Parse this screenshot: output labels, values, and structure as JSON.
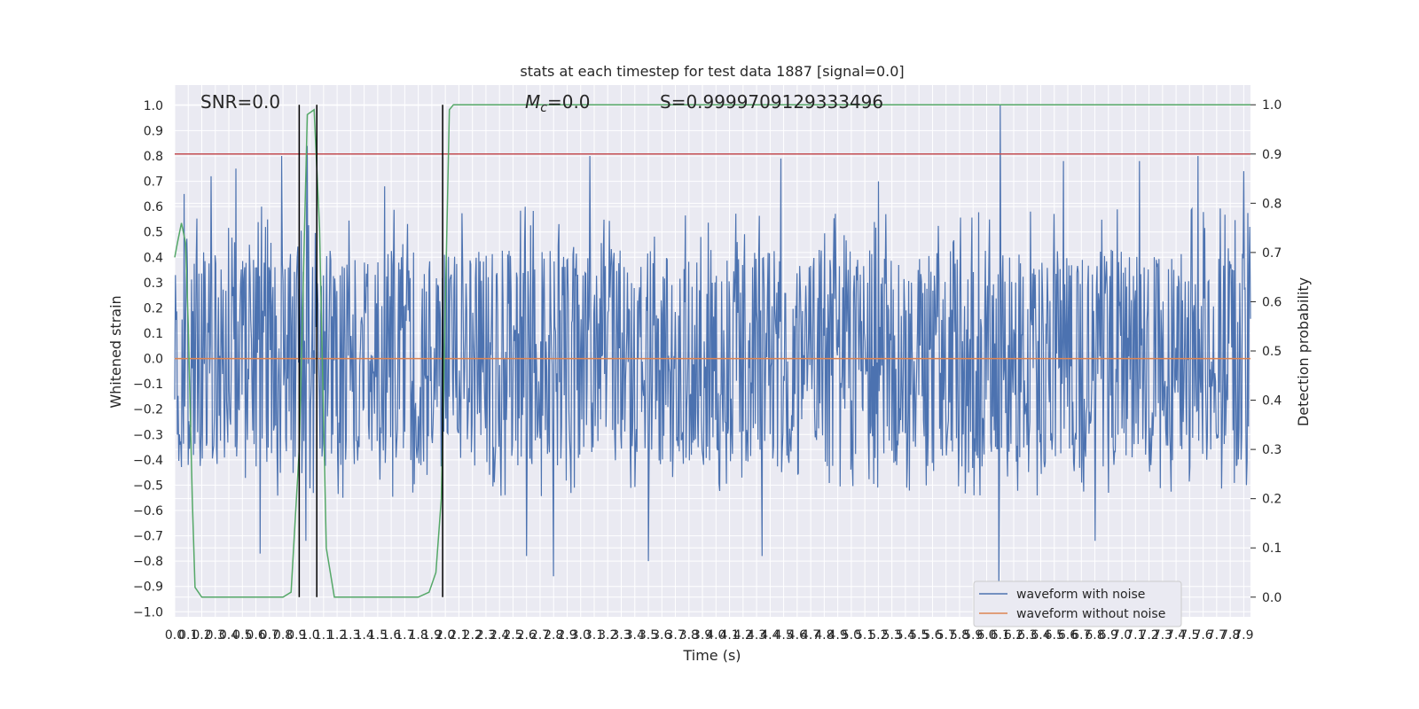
{
  "chart_data": {
    "type": "line",
    "title": "stats at each timestep for test data 1887 [signal=0.0]",
    "xlabel": "Time (s)",
    "ylabel": "Whitened strain",
    "y2label": "Detection probability",
    "xlim": [
      0.0,
      7.95
    ],
    "ylim": [
      -1.02,
      1.08
    ],
    "y2lim": [
      -0.04,
      1.04
    ],
    "x_ticks": [
      0.0,
      0.1,
      0.2,
      0.3,
      0.4,
      0.5,
      0.6,
      0.7,
      0.8,
      0.9,
      1.0,
      1.1,
      1.2,
      1.3,
      1.4,
      1.5,
      1.6,
      1.7,
      1.8,
      1.9,
      2.0,
      2.1,
      2.2,
      2.3,
      2.4,
      2.5,
      2.6,
      2.7,
      2.8,
      2.9,
      3.0,
      3.1,
      3.2,
      3.3,
      3.4,
      3.5,
      3.6,
      3.7,
      3.8,
      3.9,
      4.0,
      4.1,
      4.2,
      4.3,
      4.4,
      4.5,
      4.6,
      4.7,
      4.8,
      4.9,
      5.0,
      5.1,
      5.2,
      5.3,
      5.4,
      5.5,
      5.6,
      5.7,
      5.8,
      5.9,
      6.0,
      6.1,
      6.2,
      6.3,
      6.4,
      6.5,
      6.6,
      6.7,
      6.8,
      6.9,
      7.0,
      7.1,
      7.2,
      7.3,
      7.4,
      7.5,
      7.6,
      7.7,
      7.8,
      7.9
    ],
    "y_ticks": [
      -1.0,
      -0.9,
      -0.8,
      -0.7,
      -0.6,
      -0.5,
      -0.4,
      -0.3,
      -0.2,
      -0.1,
      0.0,
      0.1,
      0.2,
      0.3,
      0.4,
      0.5,
      0.6,
      0.7,
      0.8,
      0.9,
      1.0
    ],
    "y2_ticks": [
      0.0,
      0.1,
      0.2,
      0.3,
      0.4,
      0.5,
      0.6,
      0.7,
      0.8,
      0.9,
      1.0
    ],
    "grid": true,
    "legend_position": "lower-right",
    "annotations": {
      "snr": "SNR=0.0",
      "mc_symbol": "M",
      "mc_sub": "c",
      "mc_value": "=0.0",
      "s": "S=0.9999709129333496"
    },
    "threshold": {
      "axis": "right",
      "value": 0.9,
      "color": "#c44e52"
    },
    "vertical_lines_x": [
      0.92,
      1.05,
      1.98
    ],
    "series": [
      {
        "name": "waveform with noise",
        "axis": "left",
        "color": "#4c72b0",
        "kind": "dense-noise",
        "n_points": 1600,
        "core_amplitude": 0.28,
        "typical_max": 0.6,
        "typical_min": -0.55,
        "peaks": [
          {
            "x": 0.07,
            "y": 0.65
          },
          {
            "x": 0.27,
            "y": 0.72
          },
          {
            "x": 0.45,
            "y": 0.75
          },
          {
            "x": 0.64,
            "y": 0.6
          },
          {
            "x": 0.79,
            "y": 0.8
          },
          {
            "x": 0.98,
            "y": 0.84
          },
          {
            "x": 1.55,
            "y": 0.68
          },
          {
            "x": 3.07,
            "y": 0.8
          },
          {
            "x": 4.48,
            "y": 0.79
          },
          {
            "x": 5.2,
            "y": 0.7
          },
          {
            "x": 6.1,
            "y": 1.0
          },
          {
            "x": 6.57,
            "y": 0.78
          },
          {
            "x": 7.13,
            "y": 0.78
          },
          {
            "x": 7.56,
            "y": 0.8
          },
          {
            "x": 7.9,
            "y": 0.74
          },
          {
            "x": 0.63,
            "y": -0.77
          },
          {
            "x": 0.97,
            "y": -0.72
          },
          {
            "x": 2.6,
            "y": -0.78
          },
          {
            "x": 2.8,
            "y": -0.86
          },
          {
            "x": 3.5,
            "y": -0.8
          },
          {
            "x": 4.34,
            "y": -0.78
          },
          {
            "x": 6.09,
            "y": -0.93
          },
          {
            "x": 6.8,
            "y": -0.72
          }
        ]
      },
      {
        "name": "waveform without noise",
        "axis": "left",
        "color": "#dd8452",
        "x": [
          0.0,
          7.95
        ],
        "y": [
          0.0,
          0.0
        ]
      },
      {
        "name": "",
        "axis": "right",
        "color": "#55a868",
        "x": [
          0.0,
          0.02,
          0.05,
          0.08,
          0.1,
          0.13,
          0.15,
          0.2,
          0.3,
          0.4,
          0.5,
          0.6,
          0.7,
          0.8,
          0.86,
          0.92,
          0.98,
          1.03,
          1.07,
          1.12,
          1.18,
          1.3,
          1.5,
          1.7,
          1.8,
          1.88,
          1.93,
          1.97,
          2.0,
          2.03,
          2.06,
          2.1,
          2.2,
          3.0,
          4.0,
          5.0,
          6.0,
          7.0,
          7.95
        ],
        "y": [
          0.69,
          0.72,
          0.76,
          0.72,
          0.55,
          0.2,
          0.02,
          0.0,
          0.0,
          0.0,
          0.0,
          0.0,
          0.0,
          0.0,
          0.01,
          0.3,
          0.98,
          0.99,
          0.75,
          0.1,
          0.0,
          0.0,
          0.0,
          0.0,
          0.0,
          0.01,
          0.05,
          0.2,
          0.6,
          0.99,
          1.0,
          1.0,
          1.0,
          1.0,
          1.0,
          1.0,
          1.0,
          1.0,
          1.0
        ]
      }
    ]
  }
}
